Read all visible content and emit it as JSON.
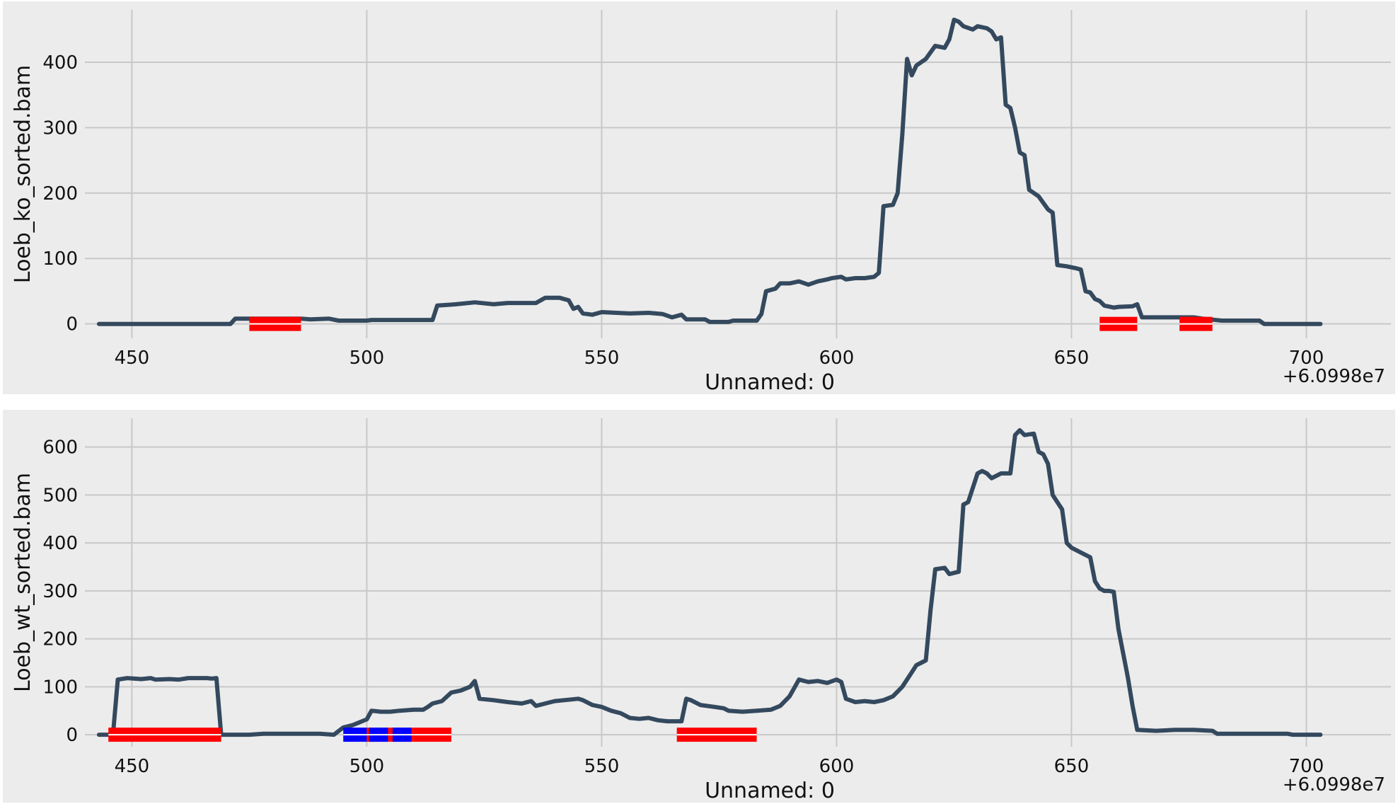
{
  "chart_data": [
    {
      "type": "line",
      "title": "",
      "xlabel": "Unnamed: 0",
      "ylabel": "Loeb_ko_sorted.bam",
      "x_offset_label": "+6.0998e7",
      "xlim": [
        440,
        718
      ],
      "ylim": [
        -22,
        480
      ],
      "x_ticks": [
        450,
        500,
        550,
        600,
        650,
        700
      ],
      "y_ticks": [
        0,
        100,
        200,
        300,
        400
      ],
      "grid": true,
      "series": [
        {
          "color": "#34495e",
          "points": [
            [
              443,
              0
            ],
            [
              471,
              0
            ],
            [
              472,
              8
            ],
            [
              486,
              8
            ],
            [
              488,
              7
            ],
            [
              492,
              8
            ],
            [
              494,
              5
            ],
            [
              500,
              5
            ],
            [
              501,
              6
            ],
            [
              514,
              6
            ],
            [
              515,
              28
            ],
            [
              519,
              30
            ],
            [
              523,
              33
            ],
            [
              527,
              30
            ],
            [
              530,
              32
            ],
            [
              536,
              32
            ],
            [
              538,
              40
            ],
            [
              541,
              40
            ],
            [
              543,
              36
            ],
            [
              544,
              23
            ],
            [
              545,
              26
            ],
            [
              546,
              16
            ],
            [
              548,
              14
            ],
            [
              550,
              18
            ],
            [
              556,
              16
            ],
            [
              560,
              17
            ],
            [
              563,
              15
            ],
            [
              565,
              10
            ],
            [
              567,
              14
            ],
            [
              568,
              7
            ],
            [
              572,
              7
            ],
            [
              573,
              3
            ],
            [
              577,
              3
            ],
            [
              578,
              5
            ],
            [
              583,
              5
            ],
            [
              584,
              15
            ],
            [
              585,
              50
            ],
            [
              587,
              54
            ],
            [
              588,
              62
            ],
            [
              590,
              62
            ],
            [
              592,
              65
            ],
            [
              594,
              60
            ],
            [
              596,
              65
            ],
            [
              598,
              68
            ],
            [
              599,
              70
            ],
            [
              601,
              72
            ],
            [
              602,
              68
            ],
            [
              604,
              70
            ],
            [
              606,
              70
            ],
            [
              608,
              72
            ],
            [
              609,
              78
            ],
            [
              610,
              180
            ],
            [
              612,
              182
            ],
            [
              613,
              200
            ],
            [
              614,
              290
            ],
            [
              615,
              405
            ],
            [
              616,
              380
            ],
            [
              617,
              395
            ],
            [
              619,
              405
            ],
            [
              621,
              425
            ],
            [
              623,
              422
            ],
            [
              624,
              435
            ],
            [
              625,
              465
            ],
            [
              626,
              462
            ],
            [
              627,
              455
            ],
            [
              629,
              450
            ],
            [
              630,
              455
            ],
            [
              632,
              452
            ],
            [
              633,
              447
            ],
            [
              634,
              435
            ],
            [
              635,
              438
            ],
            [
              636,
              335
            ],
            [
              637,
              330
            ],
            [
              638,
              300
            ],
            [
              639,
              262
            ],
            [
              640,
              258
            ],
            [
              641,
              205
            ],
            [
              643,
              195
            ],
            [
              645,
              175
            ],
            [
              646,
              170
            ],
            [
              647,
              90
            ],
            [
              649,
              88
            ],
            [
              651,
              85
            ],
            [
              652,
              83
            ],
            [
              653,
              50
            ],
            [
              654,
              48
            ],
            [
              655,
              38
            ],
            [
              656,
              35
            ],
            [
              657,
              28
            ],
            [
              659,
              25
            ],
            [
              660,
              26
            ],
            [
              663,
              27
            ],
            [
              664,
              30
            ],
            [
              665,
              10
            ],
            [
              667,
              10
            ],
            [
              672,
              10
            ],
            [
              676,
              10
            ],
            [
              678,
              8
            ],
            [
              682,
              5
            ],
            [
              690,
              5
            ],
            [
              691,
              0
            ],
            [
              703,
              0
            ]
          ]
        }
      ],
      "spans": [
        {
          "x": [
            475,
            486
          ],
          "color": "#ff0000"
        },
        {
          "x": [
            656,
            664
          ],
          "color": "#ff0000"
        },
        {
          "x": [
            673,
            680
          ],
          "color": "#ff0000"
        }
      ]
    },
    {
      "type": "line",
      "title": "",
      "xlabel": "Unnamed: 0",
      "ylabel": "Loeb_wt_sorted.bam",
      "x_offset_label": "+6.0998e7",
      "xlim": [
        440,
        718
      ],
      "ylim": [
        -25,
        660
      ],
      "x_ticks": [
        450,
        500,
        550,
        600,
        650,
        700
      ],
      "y_ticks": [
        0,
        100,
        200,
        300,
        400,
        500,
        600
      ],
      "grid": true,
      "series": [
        {
          "color": "#34495e",
          "points": [
            [
              443,
              0
            ],
            [
              445,
              0
            ],
            [
              446,
              2
            ],
            [
              447,
              115
            ],
            [
              449,
              118
            ],
            [
              452,
              116
            ],
            [
              454,
              118
            ],
            [
              455,
              115
            ],
            [
              458,
              116
            ],
            [
              460,
              115
            ],
            [
              462,
              118
            ],
            [
              466,
              118
            ],
            [
              467,
              117
            ],
            [
              468,
              118
            ],
            [
              469,
              0
            ],
            [
              475,
              0
            ],
            [
              478,
              2
            ],
            [
              484,
              2
            ],
            [
              490,
              2
            ],
            [
              493,
              0
            ],
            [
              495,
              15
            ],
            [
              497,
              20
            ],
            [
              499,
              28
            ],
            [
              500,
              32
            ],
            [
              501,
              50
            ],
            [
              503,
              48
            ],
            [
              505,
              48
            ],
            [
              507,
              50
            ],
            [
              510,
              52
            ],
            [
              512,
              52
            ],
            [
              513,
              58
            ],
            [
              514,
              65
            ],
            [
              516,
              70
            ],
            [
              518,
              88
            ],
            [
              520,
              92
            ],
            [
              522,
              100
            ],
            [
              523,
              112
            ],
            [
              524,
              75
            ],
            [
              527,
              72
            ],
            [
              530,
              68
            ],
            [
              533,
              65
            ],
            [
              535,
              70
            ],
            [
              536,
              60
            ],
            [
              538,
              65
            ],
            [
              540,
              70
            ],
            [
              542,
              72
            ],
            [
              545,
              75
            ],
            [
              546,
              72
            ],
            [
              548,
              62
            ],
            [
              550,
              58
            ],
            [
              552,
              50
            ],
            [
              554,
              45
            ],
            [
              556,
              35
            ],
            [
              558,
              33
            ],
            [
              560,
              35
            ],
            [
              562,
              30
            ],
            [
              564,
              28
            ],
            [
              567,
              28
            ],
            [
              568,
              75
            ],
            [
              569,
              72
            ],
            [
              571,
              62
            ],
            [
              574,
              58
            ],
            [
              576,
              55
            ],
            [
              577,
              50
            ],
            [
              580,
              48
            ],
            [
              583,
              50
            ],
            [
              586,
              52
            ],
            [
              588,
              60
            ],
            [
              590,
              80
            ],
            [
              592,
              115
            ],
            [
              594,
              110
            ],
            [
              596,
              112
            ],
            [
              598,
              108
            ],
            [
              600,
              115
            ],
            [
              601,
              110
            ],
            [
              602,
              75
            ],
            [
              604,
              68
            ],
            [
              606,
              70
            ],
            [
              608,
              68
            ],
            [
              610,
              72
            ],
            [
              612,
              80
            ],
            [
              614,
              100
            ],
            [
              616,
              130
            ],
            [
              617,
              145
            ],
            [
              618,
              150
            ],
            [
              619,
              155
            ],
            [
              620,
              260
            ],
            [
              621,
              345
            ],
            [
              623,
              348
            ],
            [
              624,
              335
            ],
            [
              626,
              340
            ],
            [
              627,
              480
            ],
            [
              628,
              485
            ],
            [
              630,
              545
            ],
            [
              631,
              550
            ],
            [
              632,
              545
            ],
            [
              633,
              535
            ],
            [
              635,
              545
            ],
            [
              637,
              545
            ],
            [
              638,
              625
            ],
            [
              639,
              635
            ],
            [
              640,
              625
            ],
            [
              642,
              628
            ],
            [
              643,
              590
            ],
            [
              644,
              585
            ],
            [
              645,
              565
            ],
            [
              646,
              500
            ],
            [
              647,
              485
            ],
            [
              648,
              470
            ],
            [
              649,
              400
            ],
            [
              650,
              390
            ],
            [
              652,
              380
            ],
            [
              654,
              370
            ],
            [
              655,
              320
            ],
            [
              656,
              305
            ],
            [
              657,
              300
            ],
            [
              658,
              300
            ],
            [
              659,
              298
            ],
            [
              660,
              220
            ],
            [
              662,
              120
            ],
            [
              663,
              60
            ],
            [
              664,
              10
            ],
            [
              668,
              8
            ],
            [
              672,
              10
            ],
            [
              676,
              10
            ],
            [
              680,
              8
            ],
            [
              681,
              2
            ],
            [
              692,
              2
            ],
            [
              696,
              2
            ],
            [
              697,
              0
            ],
            [
              703,
              0
            ]
          ]
        }
      ],
      "spans": [
        {
          "x": [
            445,
            469
          ],
          "color": "#ff0000"
        },
        {
          "x": [
            495,
            500
          ],
          "color": "#0000ff"
        },
        {
          "x": [
            500,
            505
          ],
          "color": "#ff0000"
        },
        {
          "x": [
            500.5,
            504.5
          ],
          "color": "#0000ff"
        },
        {
          "x": [
            505,
            510
          ],
          "color": "#ff0000"
        },
        {
          "x": [
            505.5,
            509.5
          ],
          "color": "#0000ff"
        },
        {
          "x": [
            510,
            518
          ],
          "color": "#ff0000"
        },
        {
          "x": [
            566,
            583
          ],
          "color": "#ff0000"
        }
      ]
    }
  ]
}
